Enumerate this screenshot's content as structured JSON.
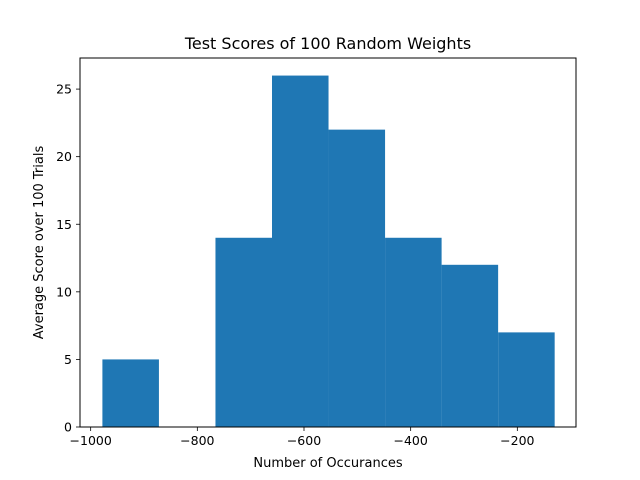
{
  "chart_data": {
    "type": "bar",
    "title": "Test Scores of 100 Random Weights",
    "xlabel": "Number of Occurances",
    "ylabel": "Average Score over 100 Trials",
    "bar_color": "#1f77b4",
    "xlim": [
      -1020,
      -90
    ],
    "ylim": [
      0,
      27.3
    ],
    "bins": [
      {
        "start": -978,
        "end": -872,
        "value": 5
      },
      {
        "start": -872,
        "end": -766,
        "value": 0
      },
      {
        "start": -766,
        "end": -660,
        "value": 14
      },
      {
        "start": -660,
        "end": -554,
        "value": 26
      },
      {
        "start": -554,
        "end": -448,
        "value": 22
      },
      {
        "start": -448,
        "end": -342,
        "value": 14
      },
      {
        "start": -342,
        "end": -236,
        "value": 12
      },
      {
        "start": -236,
        "end": -130,
        "value": 7
      }
    ],
    "x_ticks": [
      {
        "value": -1000,
        "label": "−1000"
      },
      {
        "value": -800,
        "label": "−800"
      },
      {
        "value": -600,
        "label": "−600"
      },
      {
        "value": -400,
        "label": "−400"
      },
      {
        "value": -200,
        "label": "−200"
      }
    ],
    "y_ticks": [
      {
        "value": 0,
        "label": "0"
      },
      {
        "value": 5,
        "label": "5"
      },
      {
        "value": 10,
        "label": "10"
      },
      {
        "value": 15,
        "label": "15"
      },
      {
        "value": 20,
        "label": "20"
      },
      {
        "value": 25,
        "label": "25"
      }
    ],
    "grid": false,
    "legend": "none"
  }
}
